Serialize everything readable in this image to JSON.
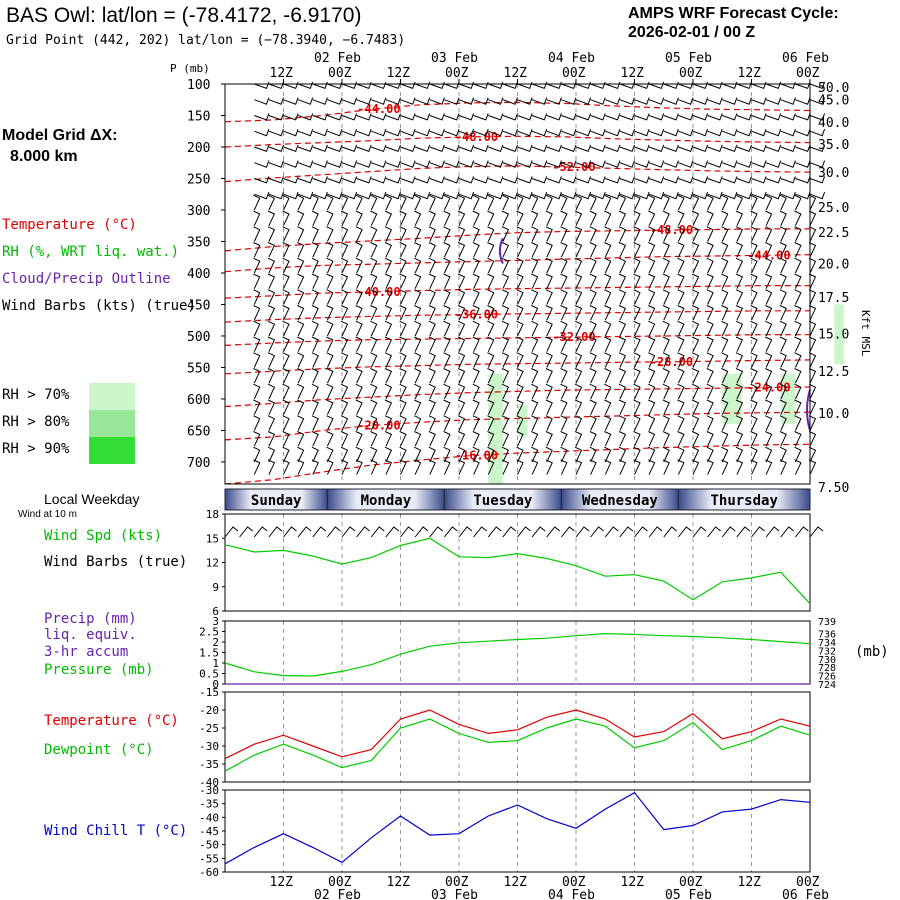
{
  "header": {
    "title": "BAS Owl:  lat/lon = (-78.4172, -6.9170)",
    "subtitle": "Grid Point (442, 202) lat/lon = (−78.3940, −6.7483)",
    "cycle_line1": "AMPS WRF Forecast Cycle:",
    "cycle_line2": "2026-02-01 / 00  Z"
  },
  "legend": {
    "grid_label": "Model Grid ΔX:",
    "grid_value": "8.000 km",
    "temperature": "Temperature (°C)",
    "rh": "RH (%, WRT liq. wat.)",
    "cloud": "Cloud/Precip Outline",
    "wind_barbs": "Wind Barbs (kts) (true)",
    "rh70": "RH > 70%",
    "rh80": "RH > 80%",
    "rh90": "RH > 90%",
    "rh_colors": [
      "#ccf5cc",
      "#99e699",
      "#33dd33"
    ]
  },
  "local_weekday": {
    "label": "Local Weekday",
    "wind_note": "Wind at 10 m"
  },
  "panel_labels": {
    "wind_spd": "Wind Spd (kts)",
    "wind_barbs": "Wind Barbs (true)",
    "precip1": "Precip (mm)",
    "precip2": "liq. equiv.",
    "precip3": "3-hr accum",
    "pressure": "Pressure (mb)",
    "temperature": "Temperature (°C)",
    "dewpoint": "Dewpoint (°C)",
    "wind_chill": "Wind Chill T (°C)",
    "pressure_unit": "(mb)",
    "kft_axis": "Kft MSL",
    "p_axis": "P (mb)"
  },
  "colors": {
    "temperature": "#dd0000",
    "dewpoint": "#00cc00",
    "wind_speed": "#00cc00",
    "pressure": "#00cc00",
    "wind_chill": "#0000cc",
    "cloud": "#6622aa",
    "day_bar": "#3a4a8a"
  },
  "chart_data": [
    {
      "type": "cross-section",
      "name": "pressure-time cross section",
      "x": [
        6,
        9,
        12,
        15,
        18,
        21,
        24,
        27,
        30,
        33,
        36,
        39,
        42,
        45,
        48,
        51,
        54,
        57,
        60,
        63,
        66,
        69,
        72,
        75,
        78,
        81,
        84,
        87,
        90,
        93,
        96,
        99,
        102,
        105,
        108,
        111,
        114,
        117,
        120
      ],
      "time_ticks_top": [
        "12Z",
        "00Z",
        "12Z",
        "00Z",
        "12Z",
        "00Z",
        "12Z",
        "00Z",
        "12Z",
        "00Z"
      ],
      "date_ticks": [
        "02 Feb",
        "03 Feb",
        "04 Feb",
        "05 Feb",
        "06 Feb"
      ],
      "time_ticks_bottom": [
        "12Z",
        "00Z",
        "12Z",
        "00Z",
        "12Z",
        "00Z",
        "12Z",
        "00Z",
        "12Z",
        "00Z"
      ],
      "p_levels": [
        100,
        150,
        200,
        250,
        300,
        350,
        400,
        450,
        500,
        550,
        600,
        650,
        700
      ],
      "p_range": [
        100,
        735
      ],
      "kft_ticks": [
        "50.0",
        "45.0",
        "40.0",
        "35.0",
        "30.0",
        "25.0",
        "22.5",
        "20.0",
        "17.5",
        "15.0",
        "12.5",
        "10.0",
        "7.50"
      ],
      "kft_pressures": [
        105,
        125,
        160,
        195,
        240,
        295,
        335,
        385,
        438,
        496,
        556,
        622,
        740
      ],
      "temperature_contours": [
        {
          "label": "-44.00",
          "p": [
            160,
            157,
            150,
            140,
            133,
            130,
            129,
            131,
            135,
            138,
            140,
            141,
            142
          ]
        },
        {
          "label": "-48.00",
          "p": [
            200,
            196,
            193,
            190,
            186,
            184,
            183,
            184,
            187,
            189,
            191,
            192,
            193
          ]
        },
        {
          "label": "-52.00",
          "p": [
            255,
            249,
            244,
            239,
            234,
            231,
            230,
            232,
            234,
            236,
            238,
            239,
            240
          ]
        },
        {
          "label": "-48.00",
          "p": [
            365,
            358,
            353,
            349,
            345,
            340,
            336,
            334,
            333,
            332,
            331,
            330,
            330
          ]
        },
        {
          "label": "-44.00",
          "p": [
            398,
            392,
            388,
            386,
            384,
            382,
            380,
            378,
            376,
            374,
            373,
            372,
            371
          ]
        },
        {
          "label": "-40.00",
          "p": [
            440,
            436,
            432,
            430,
            428,
            426,
            425,
            424,
            423,
            422,
            421,
            420,
            420
          ]
        },
        {
          "label": "-36.00",
          "p": [
            478,
            474,
            471,
            469,
            467,
            466,
            465,
            464,
            463,
            462,
            461,
            460,
            460
          ]
        },
        {
          "label": "-32.00",
          "p": [
            515,
            511,
            508,
            506,
            505,
            504,
            503,
            502,
            501,
            500,
            499,
            498,
            498
          ]
        },
        {
          "label": "-28.00",
          "p": [
            560,
            556,
            552,
            549,
            547,
            545,
            544,
            543,
            542,
            541,
            540,
            539,
            538
          ]
        },
        {
          "label": "-24.00",
          "p": [
            612,
            607,
            601,
            597,
            593,
            590,
            588,
            586,
            585,
            584,
            583,
            582,
            581
          ]
        },
        {
          "label": "-20.00",
          "p": [
            665,
            660,
            650,
            642,
            637,
            633,
            631,
            629,
            627,
            625,
            623,
            622,
            621
          ]
        },
        {
          "label": "-16.00",
          "p": [
            735,
            728,
            716,
            705,
            697,
            690,
            686,
            683,
            680,
            677,
            675,
            673,
            672
          ]
        }
      ],
      "rh_regions": [
        {
          "rh": ">70%",
          "hours": [
            54,
            57
          ],
          "p": [
            560,
            735
          ]
        },
        {
          "rh": ">70%",
          "hours": [
            60,
            62
          ],
          "p": [
            610,
            660
          ]
        },
        {
          "rh": ">70%",
          "hours": [
            102,
            106
          ],
          "p": [
            560,
            640
          ]
        },
        {
          "rh": ">70%",
          "hours": [
            114,
            117
          ],
          "p": [
            560,
            640
          ]
        },
        {
          "rh": ">70%",
          "hours": [
            125,
            127
          ],
          "p": [
            450,
            545
          ]
        }
      ],
      "cloud_outline": [
        {
          "hour": 57,
          "p": [
            345,
            385
          ]
        },
        {
          "hour": 126,
          "p": [
            585,
            650
          ]
        }
      ]
    },
    {
      "type": "line",
      "name": "Wind speed",
      "ylabel": "Wind Spd (kts)",
      "ylim": [
        6,
        18
      ],
      "yticks": [
        6,
        9,
        12,
        15,
        18
      ],
      "x": [
        0,
        6,
        12,
        18,
        24,
        30,
        36,
        42,
        48,
        54,
        60,
        66,
        72,
        78,
        84,
        90,
        96,
        102,
        108,
        114,
        120
      ],
      "series": [
        {
          "name": "Wind Spd",
          "values": [
            14.2,
            13.3,
            13.5,
            12.8,
            11.8,
            12.6,
            14.1,
            15.0,
            12.7,
            12.6,
            13.1,
            12.5,
            11.6,
            10.3,
            10.5,
            9.7,
            7.4,
            9.6,
            10.1,
            10.8,
            6.9
          ]
        }
      ]
    },
    {
      "type": "line",
      "name": "Precip and Pressure",
      "ylabel": "Precip (mm)",
      "ylim": [
        0,
        3
      ],
      "yticks": [
        "0",
        "0.5",
        "1",
        "1.5",
        "2",
        "2.5",
        "3"
      ],
      "y2lim": [
        724,
        739
      ],
      "y2ticks": [
        "724",
        "726",
        "728",
        "730",
        "732",
        "734",
        "736",
        "739"
      ],
      "x": [
        0,
        6,
        12,
        18,
        24,
        30,
        36,
        42,
        48,
        54,
        60,
        66,
        72,
        78,
        84,
        90,
        96,
        102,
        108,
        114,
        120
      ],
      "series": [
        {
          "name": "Precip",
          "values": [
            0,
            0,
            0,
            0,
            0,
            0,
            0,
            0,
            0,
            0,
            0,
            0,
            0,
            0,
            0,
            0,
            0,
            0,
            0,
            0,
            0
          ]
        },
        {
          "name": "Pressure",
          "values": [
            729.0,
            726.9,
            726.0,
            725.9,
            727.0,
            728.6,
            731.1,
            733.0,
            733.8,
            734.2,
            734.6,
            734.9,
            735.5,
            736.0,
            735.8,
            735.5,
            735.3,
            735.0,
            734.6,
            734.1,
            733.6
          ]
        }
      ]
    },
    {
      "type": "line",
      "name": "Temperature and Dewpoint",
      "ylabel": "Temperature (°C)",
      "ylim": [
        -40,
        -15
      ],
      "yticks": [
        -40,
        -35,
        -30,
        -25,
        -20,
        -15
      ],
      "x": [
        0,
        6,
        12,
        18,
        24,
        30,
        36,
        42,
        48,
        54,
        60,
        66,
        72,
        78,
        84,
        90,
        96,
        102,
        108,
        114,
        120
      ],
      "series": [
        {
          "name": "Temperature",
          "values": [
            -33.5,
            -29.5,
            -27.0,
            -30.0,
            -33.0,
            -31.0,
            -22.5,
            -20.0,
            -24.0,
            -26.5,
            -25.5,
            -22.0,
            -20.0,
            -22.5,
            -27.5,
            -26.0,
            -21.0,
            -28.0,
            -26.0,
            -22.5,
            -24.5
          ]
        },
        {
          "name": "Dewpoint",
          "values": [
            -37.0,
            -32.5,
            -29.5,
            -32.5,
            -36.0,
            -34.0,
            -25.0,
            -22.5,
            -26.5,
            -29.0,
            -28.5,
            -25.0,
            -22.5,
            -24.5,
            -30.5,
            -28.5,
            -23.5,
            -31.0,
            -28.5,
            -24.5,
            -27.0
          ]
        }
      ]
    },
    {
      "type": "line",
      "name": "Wind Chill",
      "ylabel": "Wind Chill T (°C)",
      "ylim": [
        -60,
        -30
      ],
      "yticks": [
        -60,
        -55,
        -50,
        -45,
        -40,
        -35,
        -30
      ],
      "x": [
        0,
        6,
        12,
        18,
        24,
        30,
        36,
        42,
        48,
        54,
        60,
        66,
        72,
        78,
        84,
        90,
        96,
        102,
        108,
        114,
        120
      ],
      "series": [
        {
          "name": "Wind Chill",
          "values": [
            -57.0,
            -51.0,
            -46.0,
            -51.0,
            -56.5,
            -47.5,
            -39.5,
            -46.5,
            -46.0,
            -39.5,
            -35.5,
            -40.5,
            -44.0,
            -37.0,
            -31.0,
            -44.5,
            -43.0,
            -38.0,
            -37.0,
            -33.5,
            -34.5
          ]
        }
      ]
    }
  ],
  "days": [
    "Sunday",
    "Monday",
    "Tuesday",
    "Wednesday",
    "Thursday"
  ]
}
